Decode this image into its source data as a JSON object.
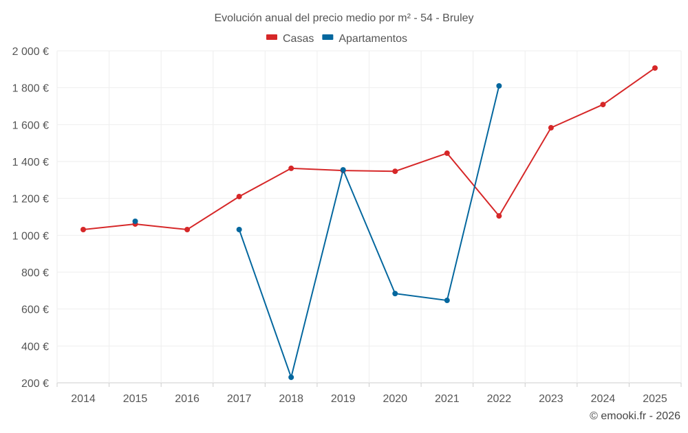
{
  "chart_data": {
    "type": "line",
    "title": "Evolución anual del precio medio por m² - 54 - Bruley",
    "xlabel": "",
    "ylabel": "",
    "categories": [
      "2014",
      "2015",
      "2016",
      "2017",
      "2018",
      "2019",
      "2020",
      "2021",
      "2022",
      "2023",
      "2024",
      "2025"
    ],
    "ylim": [
      200,
      2000
    ],
    "yticks": [
      200,
      400,
      600,
      800,
      1000,
      1200,
      1400,
      1600,
      1800,
      2000
    ],
    "ytick_labels": [
      "200 €",
      "400 €",
      "600 €",
      "800 €",
      "1 000 €",
      "1 200 €",
      "1 400 €",
      "1 600 €",
      "1 800 €",
      "2 000 €"
    ],
    "grid": true,
    "legend_position": "top-center",
    "series": [
      {
        "name": "Casas",
        "color": "#d62728",
        "values": [
          1031,
          1061,
          1031,
          1210,
          1363,
          1351,
          1347,
          1445,
          1105,
          1583,
          1709,
          1907
        ]
      },
      {
        "name": "Apartamentos",
        "color": "#04679e",
        "values": [
          null,
          1076,
          null,
          1031,
          230,
          1355,
          684,
          647,
          1810,
          null,
          null,
          null
        ]
      }
    ],
    "credit": "© emooki.fr - 2026"
  }
}
